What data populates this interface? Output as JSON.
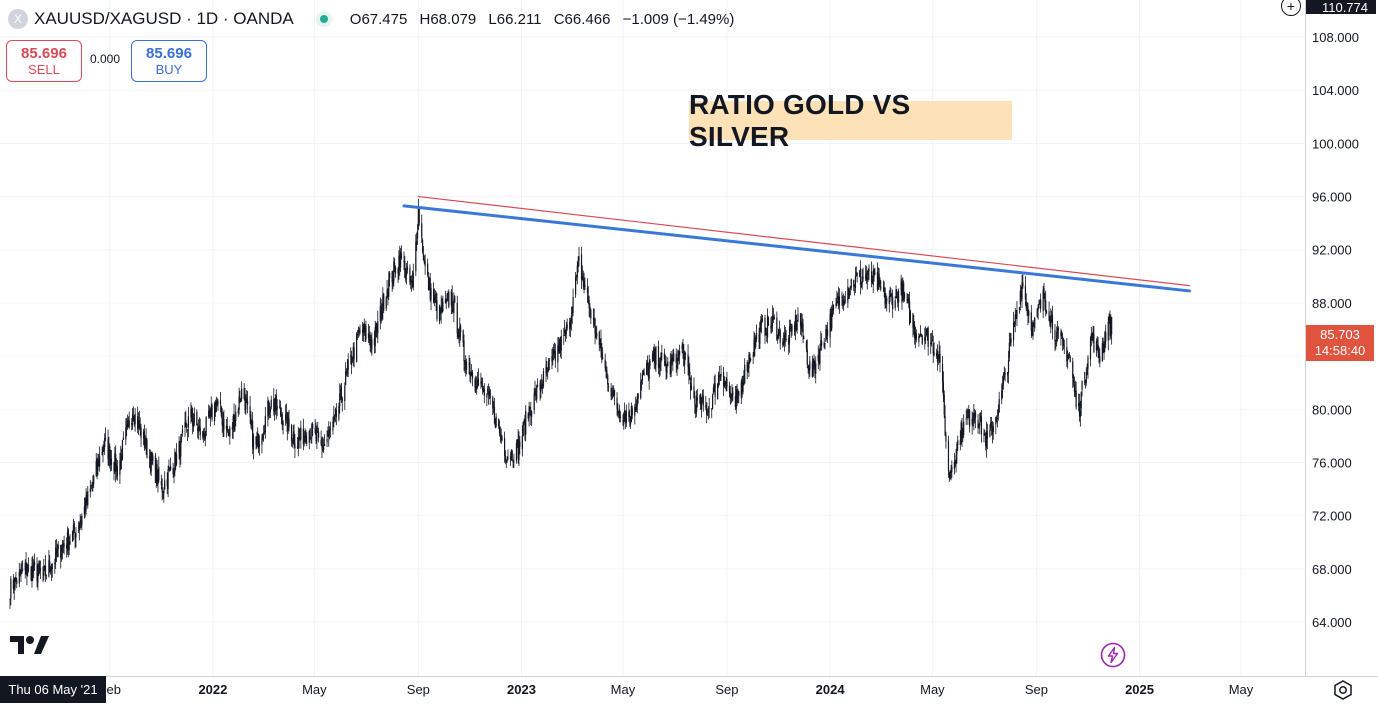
{
  "legend": {
    "symbol": "XAUUSD/XAGUSD · 1D · OANDA",
    "logo_letter": "X",
    "open_label": "O",
    "open": "67.475",
    "high_label": "H",
    "high": "68.079",
    "low_label": "L",
    "low": "66.211",
    "close_label": "C",
    "close": "66.466",
    "change": "−1.009 (−1.49%)"
  },
  "trade": {
    "sell_price": "85.696",
    "sell_label": "SELL",
    "spread": "0.000",
    "buy_price": "85.696",
    "buy_label": "BUY"
  },
  "annotation": {
    "title": "RATIO GOLD VS SILVER"
  },
  "price_tag": {
    "price": "85.703",
    "countdown": "14:58:40",
    "color": "#e0543f"
  },
  "top_tag": {
    "value": "110.774"
  },
  "crosshair_date": "Thu 06 May '21",
  "colors": {
    "candle": "#131722",
    "trendline_blue": "#3a78d6",
    "trendline_red": "#d84a55",
    "grid": "#f0f3fa"
  },
  "chart_data": {
    "type": "line",
    "title": "",
    "y_ticks": [
      "108.000",
      "104.000",
      "100.000",
      "96.000",
      "92.000",
      "88.000",
      "84.000",
      "80.000",
      "76.000",
      "72.000",
      "68.000",
      "64.000"
    ],
    "x_ticks": [
      "Feb",
      "2022",
      "May",
      "Sep",
      "2023",
      "May",
      "Sep",
      "2024",
      "May",
      "Sep",
      "2025",
      "May"
    ],
    "ylim": [
      61.5,
      110.8
    ],
    "series": [
      {
        "values": [
          [
            "2021-05-06",
            66.5
          ],
          [
            "2021-05-25",
            68.0
          ],
          [
            "2021-06-15",
            67.5
          ],
          [
            "2021-07-05",
            69.5
          ],
          [
            "2021-07-25",
            71.0
          ],
          [
            "2021-08-10",
            74.0
          ],
          [
            "2021-08-25",
            77.5
          ],
          [
            "2021-09-10",
            75.5
          ],
          [
            "2021-09-28",
            80.0
          ],
          [
            "2021-10-15",
            77.0
          ],
          [
            "2021-11-01",
            74.0
          ],
          [
            "2021-11-20",
            76.5
          ],
          [
            "2021-12-05",
            79.5
          ],
          [
            "2021-12-20",
            78.0
          ],
          [
            "2022-01-05",
            80.5
          ],
          [
            "2022-01-20",
            78.0
          ],
          [
            "2022-02-05",
            81.5
          ],
          [
            "2022-02-20",
            77.0
          ],
          [
            "2022-03-10",
            80.5
          ],
          [
            "2022-03-25",
            79.5
          ],
          [
            "2022-04-10",
            77.5
          ],
          [
            "2022-04-25",
            78.5
          ],
          [
            "2022-05-10",
            77.0
          ],
          [
            "2022-05-25",
            79.0
          ],
          [
            "2022-06-10",
            83.0
          ],
          [
            "2022-06-25",
            86.0
          ],
          [
            "2022-07-10",
            85.0
          ],
          [
            "2022-07-25",
            89.0
          ],
          [
            "2022-08-10",
            91.5
          ],
          [
            "2022-08-25",
            89.0
          ],
          [
            "2022-09-01",
            95.0
          ],
          [
            "2022-09-10",
            90.0
          ],
          [
            "2022-09-25",
            87.0
          ],
          [
            "2022-10-10",
            88.5
          ],
          [
            "2022-10-25",
            84.0
          ],
          [
            "2022-11-10",
            82.0
          ],
          [
            "2022-11-25",
            80.5
          ],
          [
            "2022-12-15",
            76.5
          ],
          [
            "2022-12-28",
            77.0
          ],
          [
            "2023-01-10",
            80.0
          ],
          [
            "2023-01-25",
            82.0
          ],
          [
            "2023-02-10",
            84.0
          ],
          [
            "2023-02-25",
            86.0
          ],
          [
            "2023-03-10",
            91.0
          ],
          [
            "2023-03-25",
            87.0
          ],
          [
            "2023-04-10",
            83.0
          ],
          [
            "2023-04-25",
            80.0
          ],
          [
            "2023-05-10",
            79.5
          ],
          [
            "2023-05-25",
            82.5
          ],
          [
            "2023-06-10",
            84.0
          ],
          [
            "2023-06-25",
            83.0
          ],
          [
            "2023-07-10",
            84.5
          ],
          [
            "2023-07-25",
            80.5
          ],
          [
            "2023-08-10",
            80.0
          ],
          [
            "2023-08-25",
            83.0
          ],
          [
            "2023-09-10",
            80.0
          ],
          [
            "2023-09-25",
            83.5
          ],
          [
            "2023-10-10",
            86.0
          ],
          [
            "2023-10-25",
            86.5
          ],
          [
            "2023-11-10",
            85.0
          ],
          [
            "2023-11-25",
            87.0
          ],
          [
            "2023-12-10",
            82.5
          ],
          [
            "2023-12-25",
            85.5
          ],
          [
            "2024-01-10",
            88.0
          ],
          [
            "2024-01-25",
            89.5
          ],
          [
            "2024-02-10",
            90.0
          ],
          [
            "2024-02-25",
            89.5
          ],
          [
            "2024-03-10",
            88.0
          ],
          [
            "2024-03-25",
            89.0
          ],
          [
            "2024-04-10",
            86.0
          ],
          [
            "2024-04-25",
            85.5
          ],
          [
            "2024-05-10",
            84.0
          ],
          [
            "2024-05-20",
            75.0
          ],
          [
            "2024-06-05",
            78.5
          ],
          [
            "2024-06-20",
            80.0
          ],
          [
            "2024-07-05",
            77.5
          ],
          [
            "2024-07-20",
            80.5
          ],
          [
            "2024-08-05",
            86.0
          ],
          [
            "2024-08-15",
            89.5
          ],
          [
            "2024-08-28",
            86.0
          ],
          [
            "2024-09-10",
            88.5
          ],
          [
            "2024-09-25",
            85.5
          ],
          [
            "2024-10-10",
            84.0
          ],
          [
            "2024-10-20",
            79.5
          ],
          [
            "2024-11-05",
            85.5
          ],
          [
            "2024-11-15",
            84.0
          ],
          [
            "2024-11-25",
            86.5
          ],
          [
            "2024-12-02",
            85.7
          ]
        ]
      }
    ],
    "trendlines": [
      {
        "color": "#3a78d6",
        "from": [
          "2022-08-15",
          95.3
        ],
        "to": [
          "2025-03-01",
          88.9
        ]
      },
      {
        "color": "#d84a55",
        "from": [
          "2022-09-01",
          96.0
        ],
        "to": [
          "2025-03-01",
          89.3
        ]
      }
    ]
  }
}
